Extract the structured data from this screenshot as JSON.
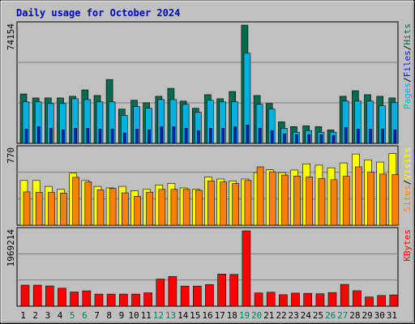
{
  "chart_data": [
    {
      "type": "bar",
      "title": "Daily usage for October 2024",
      "categories": [
        "1",
        "2",
        "3",
        "4",
        "5",
        "6",
        "7",
        "8",
        "9",
        "10",
        "11",
        "12",
        "13",
        "14",
        "15",
        "16",
        "17",
        "18",
        "19",
        "20",
        "21",
        "22",
        "23",
        "24",
        "25",
        "26",
        "27",
        "28",
        "29",
        "30",
        "31"
      ],
      "weekend_days": [
        "5",
        "6",
        "12",
        "13",
        "19",
        "20",
        "26",
        "27"
      ],
      "panels": [
        {
          "name": "hits-files-pages",
          "y_max_label": "74154",
          "ylim": [
            0,
            74154
          ],
          "legend": [
            "Pages",
            "/",
            "Files",
            "/",
            "Hits"
          ],
          "series": [
            {
              "name": "Hits",
              "color": "#006b4d",
              "values": [
                31000,
                28500,
                28500,
                28500,
                29500,
                33500,
                30000,
                40000,
                21500,
                27000,
                25500,
                29500,
                34500,
                26500,
                22000,
                30500,
                28000,
                32500,
                74154,
                30000,
                25000,
                13500,
                10500,
                11000,
                10500,
                8500,
                29500,
                33000,
                30500,
                29500,
                28500
              ]
            },
            {
              "name": "Files",
              "color": "#00b0e0",
              "values": [
                26000,
                26000,
                25000,
                25000,
                28000,
                27500,
                26000,
                26000,
                17500,
                23000,
                22000,
                27500,
                27500,
                24500,
                19500,
                27000,
                26000,
                26000,
                56500,
                24500,
                21500,
                9500,
                7000,
                8000,
                7000,
                7000,
                26500,
                26500,
                26500,
                23500,
                25500
              ]
            },
            {
              "name": "Pages",
              "color": "#0020c8",
              "values": [
                9000,
                10500,
                9500,
                8500,
                9500,
                9500,
                9000,
                9000,
                6500,
                9000,
                8500,
                10500,
                10500,
                9500,
                8000,
                9500,
                9500,
                10500,
                11500,
                9500,
                8000,
                6000,
                5500,
                5500,
                5500,
                5000,
                10000,
                9000,
                9000,
                9000,
                8500
              ]
            }
          ]
        },
        {
          "name": "visits-sites",
          "y_max_label": "770",
          "ylim": [
            0,
            770
          ],
          "legend": [
            "Sites",
            "/",
            "Visits"
          ],
          "series": [
            {
              "name": "Visits",
              "color": "#ffff00",
              "values": [
                452,
                452,
                392,
                362,
                527,
                452,
                392,
                377,
                392,
                347,
                362,
                407,
                422,
                377,
                362,
                487,
                467,
                447,
                467,
                532,
                560,
                532,
                557,
                620,
                607,
                580,
                630,
                720,
                660,
                638,
                725
              ]
            },
            {
              "name": "Sites",
              "color": "#ff8000",
              "values": [
                337,
                332,
                332,
                324,
                484,
                437,
                357,
                372,
                327,
                292,
                334,
                362,
                362,
                362,
                352,
                447,
                437,
                422,
                452,
                590,
                540,
                507,
                497,
                487,
                472,
                460,
                495,
                590,
                535,
                517,
                512
              ]
            }
          ]
        },
        {
          "name": "kbytes",
          "y_max_label": "1969214",
          "ylim": [
            0,
            1969214
          ],
          "legend": [
            "KBytes"
          ],
          "series": [
            {
              "name": "KBytes",
              "color": "#ff0000",
              "values": [
                550000,
                550000,
                530000,
                470000,
                370000,
                400000,
                315000,
                315000,
                315000,
                315000,
                350000,
                710000,
                775000,
                525000,
                525000,
                565000,
                840000,
                830000,
                1969214,
                345000,
                365000,
                300000,
                340000,
                335000,
                325000,
                355000,
                570000,
                405000,
                240000,
                280000,
                295000
              ]
            }
          ]
        }
      ]
    }
  ]
}
